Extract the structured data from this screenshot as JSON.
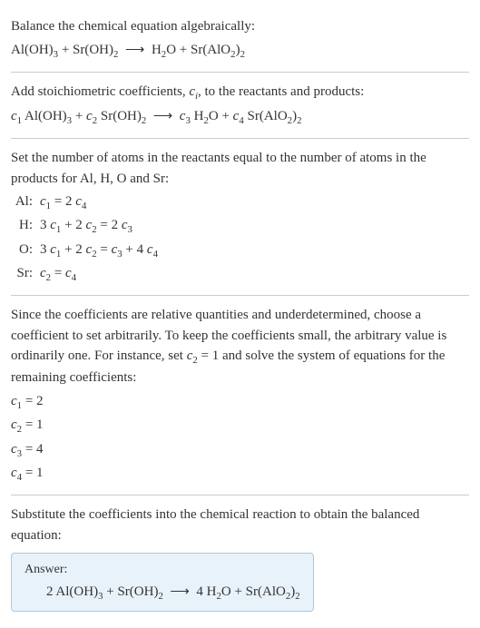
{
  "section1": {
    "text1": "Balance the chemical equation algebraically:",
    "eq": "Al(OH)₃ + Sr(OH)₂  ⟶  H₂O + Sr(AlO₂)₂"
  },
  "section2": {
    "text1": "Add stoichiometric coefficients, cᵢ, to the reactants and products:",
    "eq": "c₁ Al(OH)₃ + c₂ Sr(OH)₂  ⟶  c₃ H₂O + c₄ Sr(AlO₂)₂"
  },
  "section3": {
    "text1": "Set the number of atoms in the reactants equal to the number of atoms in the products for Al, H, O and Sr:",
    "rows": [
      {
        "label": "Al:",
        "eq": "c₁ = 2 c₄"
      },
      {
        "label": "H:",
        "eq": "3 c₁ + 2 c₂ = 2 c₃"
      },
      {
        "label": "O:",
        "eq": "3 c₁ + 2 c₂ = c₃ + 4 c₄"
      },
      {
        "label": "Sr:",
        "eq": "c₂ = c₄"
      }
    ]
  },
  "section4": {
    "text1": "Since the coefficients are relative quantities and underdetermined, choose a coefficient to set arbitrarily. To keep the coefficients small, the arbitrary value is ordinarily one. For instance, set c₂ = 1 and solve the system of equations for the remaining coefficients:",
    "eqs": [
      "c₁ = 2",
      "c₂ = 1",
      "c₃ = 4",
      "c₄ = 1"
    ]
  },
  "section5": {
    "text1": "Substitute the coefficients into the chemical reaction to obtain the balanced equation:",
    "answer_label": "Answer:",
    "answer_eq": "2 Al(OH)₃ + Sr(OH)₂  ⟶  4 H₂O + Sr(AlO₂)₂"
  }
}
